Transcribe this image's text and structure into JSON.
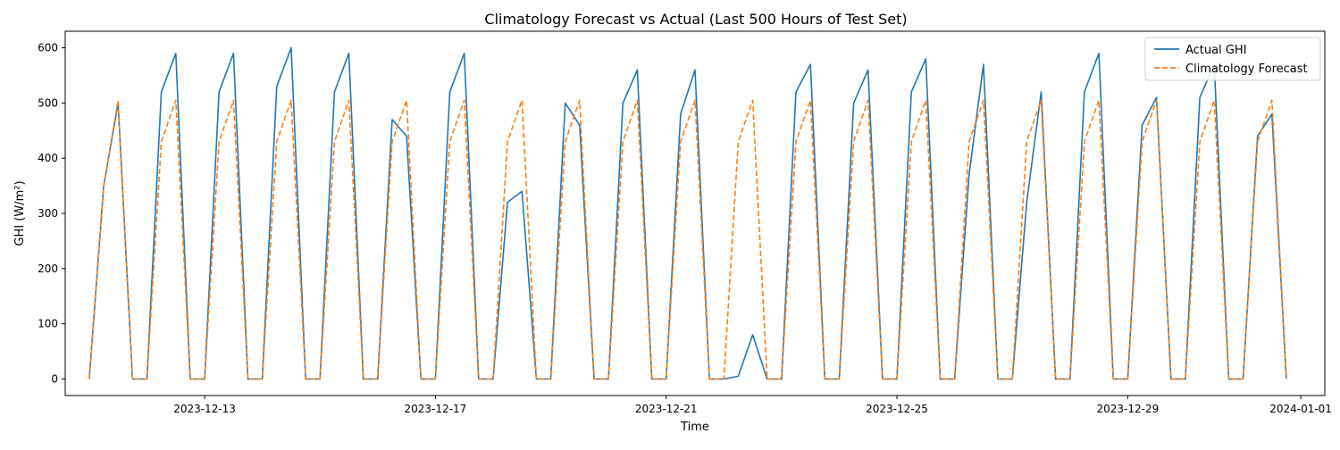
{
  "chart_data": {
    "type": "line",
    "title": "Climatology Forecast vs Actual (Last 500 Hours of Test Set)",
    "xlabel": "Time",
    "ylabel": "GHI (W/m²)",
    "x_start": "2023-12-11 00:00",
    "x_end": "2024-01-01 00:00",
    "x_step_hours": 6,
    "xlim": [
      "2023-12-10 14:00",
      "2024-01-01 10:00"
    ],
    "ylim": [
      -30,
      630
    ],
    "x_ticks": [
      {
        "date": "2023-12-13",
        "label": "2023-12-13"
      },
      {
        "date": "2023-12-17",
        "label": "2023-12-17"
      },
      {
        "date": "2023-12-21",
        "label": "2023-12-21"
      },
      {
        "date": "2023-12-25",
        "label": "2023-12-25"
      },
      {
        "date": "2023-12-29",
        "label": "2023-12-29"
      },
      {
        "date": "2024-01-01",
        "label": "2024-01-01"
      }
    ],
    "y_ticks": [
      0,
      100,
      200,
      300,
      400,
      500,
      600
    ],
    "grid": false,
    "legend_position": "top-right",
    "series": [
      {
        "name": "Actual GHI",
        "color": "#1f77b4",
        "style": "solid",
        "values": [
          0,
          350,
          500,
          0,
          0,
          520,
          590,
          0,
          0,
          520,
          590,
          0,
          0,
          530,
          600,
          0,
          0,
          520,
          590,
          0,
          0,
          470,
          440,
          0,
          0,
          520,
          590,
          0,
          0,
          320,
          340,
          0,
          0,
          500,
          460,
          0,
          0,
          500,
          560,
          0,
          0,
          480,
          560,
          0,
          0,
          5,
          80,
          0,
          0,
          520,
          570,
          0,
          0,
          500,
          560,
          0,
          0,
          520,
          580,
          0,
          0,
          370,
          570,
          0,
          0,
          320,
          520,
          0,
          0,
          520,
          590,
          0,
          0,
          460,
          510,
          0,
          0,
          510,
          570,
          0,
          0,
          440,
          480,
          0
        ]
      },
      {
        "name": "Climatology Forecast",
        "color": "#ff7f0e",
        "style": "dashed",
        "values": [
          0,
          350,
          505,
          0,
          0,
          430,
          505,
          0,
          0,
          430,
          505,
          0,
          0,
          430,
          505,
          0,
          0,
          430,
          505,
          0,
          0,
          430,
          505,
          0,
          0,
          430,
          505,
          0,
          0,
          430,
          505,
          0,
          0,
          430,
          505,
          0,
          0,
          430,
          505,
          0,
          0,
          430,
          505,
          0,
          0,
          430,
          505,
          0,
          0,
          430,
          505,
          0,
          0,
          430,
          505,
          0,
          0,
          430,
          505,
          0,
          0,
          430,
          505,
          0,
          0,
          430,
          505,
          0,
          0,
          430,
          505,
          0,
          0,
          430,
          505,
          0,
          0,
          430,
          505,
          0,
          0,
          430,
          505,
          0
        ]
      }
    ]
  }
}
